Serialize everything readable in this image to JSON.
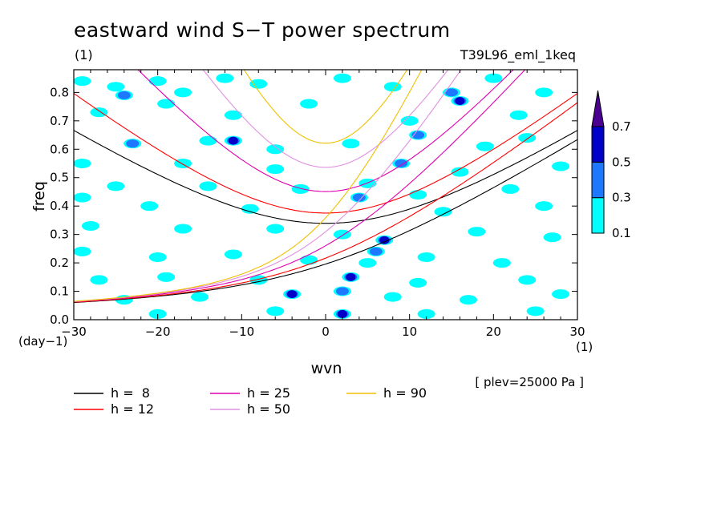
{
  "chart_data": {
    "type": "heatmap",
    "title": "eastward wind S−T power spectrum",
    "subtitle_left": "(1)",
    "subtitle_right": "T39L96_eml_1keq",
    "xlabel": "wvn",
    "ylabel": "freq",
    "x_unit": "(1)",
    "y_unit": "(day−1)",
    "note": "[ plev=25000 Pa ]",
    "xlim": [
      -30,
      30
    ],
    "ylim": [
      0,
      0.88
    ],
    "xticks": [
      "−30",
      "−20",
      "−10",
      "0",
      "10",
      "20",
      "30"
    ],
    "xtick_values": [
      -30,
      -20,
      -10,
      0,
      10,
      20,
      30
    ],
    "yticks": [
      "0.0",
      "0.1",
      "0.2",
      "0.3",
      "0.4",
      "0.5",
      "0.6",
      "0.7",
      "0.8"
    ],
    "ytick_values": [
      0,
      0.1,
      0.2,
      0.3,
      0.4,
      0.5,
      0.6,
      0.7,
      0.8
    ],
    "colorbar": {
      "levels": [
        "0.1",
        "0.3",
        "0.5",
        "0.7"
      ],
      "colors": [
        "#00ffff",
        "#1e78ff",
        "#0000c8",
        "#4b0091"
      ]
    },
    "contour_blobs": [
      {
        "x": -29,
        "y": 0.84,
        "level": 0
      },
      {
        "x": -25,
        "y": 0.82,
        "level": 0
      },
      {
        "x": -24,
        "y": 0.79,
        "level": 1
      },
      {
        "x": -20,
        "y": 0.84,
        "level": 0
      },
      {
        "x": -17,
        "y": 0.8,
        "level": 0
      },
      {
        "x": -12,
        "y": 0.85,
        "level": 0
      },
      {
        "x": -8,
        "y": 0.83,
        "level": 0
      },
      {
        "x": 2,
        "y": 0.85,
        "level": 0
      },
      {
        "x": 8,
        "y": 0.82,
        "level": 0
      },
      {
        "x": 15,
        "y": 0.8,
        "level": 1
      },
      {
        "x": 16,
        "y": 0.77,
        "level": 2
      },
      {
        "x": 20,
        "y": 0.85,
        "level": 0
      },
      {
        "x": 26,
        "y": 0.8,
        "level": 0
      },
      {
        "x": -27,
        "y": 0.73,
        "level": 0
      },
      {
        "x": -19,
        "y": 0.76,
        "level": 0
      },
      {
        "x": -11,
        "y": 0.72,
        "level": 0
      },
      {
        "x": -2,
        "y": 0.76,
        "level": 0
      },
      {
        "x": 10,
        "y": 0.7,
        "level": 0
      },
      {
        "x": 23,
        "y": 0.72,
        "level": 0
      },
      {
        "x": -23,
        "y": 0.62,
        "level": 1
      },
      {
        "x": -14,
        "y": 0.63,
        "level": 0
      },
      {
        "x": -11,
        "y": 0.63,
        "level": 2
      },
      {
        "x": -6,
        "y": 0.6,
        "level": 0
      },
      {
        "x": 3,
        "y": 0.62,
        "level": 0
      },
      {
        "x": 11,
        "y": 0.65,
        "level": 1
      },
      {
        "x": 19,
        "y": 0.61,
        "level": 0
      },
      {
        "x": 24,
        "y": 0.64,
        "level": 0
      },
      {
        "x": -29,
        "y": 0.55,
        "level": 0
      },
      {
        "x": -17,
        "y": 0.55,
        "level": 0
      },
      {
        "x": -6,
        "y": 0.53,
        "level": 0
      },
      {
        "x": 9,
        "y": 0.55,
        "level": 1
      },
      {
        "x": 16,
        "y": 0.52,
        "level": 0
      },
      {
        "x": 28,
        "y": 0.54,
        "level": 0
      },
      {
        "x": -25,
        "y": 0.47,
        "level": 0
      },
      {
        "x": -14,
        "y": 0.47,
        "level": 0
      },
      {
        "x": -3,
        "y": 0.46,
        "level": 0
      },
      {
        "x": 5,
        "y": 0.48,
        "level": 0
      },
      {
        "x": 11,
        "y": 0.44,
        "level": 0
      },
      {
        "x": 22,
        "y": 0.46,
        "level": 0
      },
      {
        "x": -29,
        "y": 0.43,
        "level": 0
      },
      {
        "x": -21,
        "y": 0.4,
        "level": 0
      },
      {
        "x": -9,
        "y": 0.39,
        "level": 0
      },
      {
        "x": 4,
        "y": 0.43,
        "level": 1
      },
      {
        "x": 14,
        "y": 0.38,
        "level": 0
      },
      {
        "x": 26,
        "y": 0.4,
        "level": 0
      },
      {
        "x": -28,
        "y": 0.33,
        "level": 0
      },
      {
        "x": -17,
        "y": 0.32,
        "level": 0
      },
      {
        "x": -6,
        "y": 0.32,
        "level": 0
      },
      {
        "x": 2,
        "y": 0.3,
        "level": 0
      },
      {
        "x": 7,
        "y": 0.28,
        "level": 2
      },
      {
        "x": 6,
        "y": 0.24,
        "level": 1
      },
      {
        "x": 18,
        "y": 0.31,
        "level": 0
      },
      {
        "x": 27,
        "y": 0.29,
        "level": 0
      },
      {
        "x": -29,
        "y": 0.24,
        "level": 0
      },
      {
        "x": -20,
        "y": 0.22,
        "level": 0
      },
      {
        "x": -11,
        "y": 0.23,
        "level": 0
      },
      {
        "x": -2,
        "y": 0.21,
        "level": 0
      },
      {
        "x": 5,
        "y": 0.2,
        "level": 0
      },
      {
        "x": 12,
        "y": 0.22,
        "level": 0
      },
      {
        "x": 21,
        "y": 0.2,
        "level": 0
      },
      {
        "x": -27,
        "y": 0.14,
        "level": 0
      },
      {
        "x": -19,
        "y": 0.15,
        "level": 0
      },
      {
        "x": -8,
        "y": 0.14,
        "level": 0
      },
      {
        "x": 3,
        "y": 0.15,
        "level": 2
      },
      {
        "x": 11,
        "y": 0.13,
        "level": 0
      },
      {
        "x": 24,
        "y": 0.14,
        "level": 0
      },
      {
        "x": -24,
        "y": 0.07,
        "level": 0
      },
      {
        "x": -15,
        "y": 0.08,
        "level": 0
      },
      {
        "x": -4,
        "y": 0.09,
        "level": 2
      },
      {
        "x": 2,
        "y": 0.1,
        "level": 1
      },
      {
        "x": 8,
        "y": 0.08,
        "level": 0
      },
      {
        "x": 17,
        "y": 0.07,
        "level": 0
      },
      {
        "x": 28,
        "y": 0.09,
        "level": 0
      },
      {
        "x": -20,
        "y": 0.02,
        "level": 0
      },
      {
        "x": -6,
        "y": 0.03,
        "level": 0
      },
      {
        "x": 2,
        "y": 0.02,
        "level": 2
      },
      {
        "x": 12,
        "y": 0.02,
        "level": 0
      },
      {
        "x": 25,
        "y": 0.03,
        "level": 0
      }
    ],
    "series": [
      {
        "name": "h =  8",
        "depth_m": 8,
        "color": "#000000"
      },
      {
        "name": "h = 12",
        "depth_m": 12,
        "color": "#ff0000"
      },
      {
        "name": "h = 25",
        "depth_m": 25,
        "color": "#e000b0"
      },
      {
        "name": "h = 50",
        "depth_m": 50,
        "color": "#e090e0"
      },
      {
        "name": "h = 90",
        "depth_m": 90,
        "color": "#f0c000"
      }
    ]
  }
}
